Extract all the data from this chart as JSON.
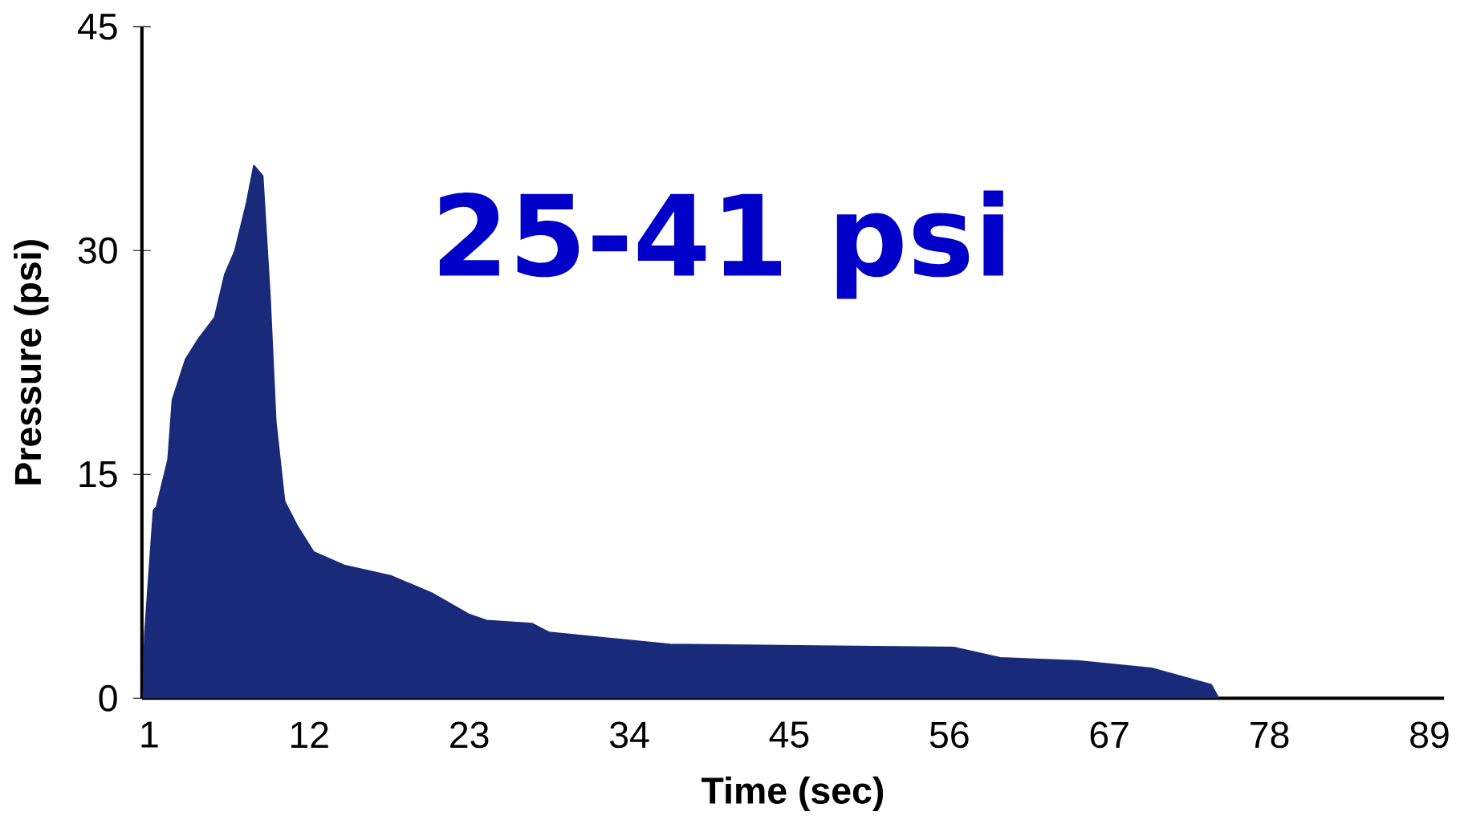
{
  "chart_data": {
    "type": "area",
    "xlabel": "Time (sec)",
    "ylabel": "Pressure (psi)",
    "annotations": [
      "25-41 psi"
    ],
    "xlim": [
      0.5,
      90
    ],
    "ylim": [
      0,
      45
    ],
    "xticks": [
      1,
      12,
      23,
      34,
      45,
      56,
      67,
      78,
      89
    ],
    "yticks": [
      0,
      15,
      30,
      45
    ],
    "grid": false,
    "series": [
      {
        "color": "#1a2a7a",
        "x": [
          0.6,
          0.7,
          1.3,
          1.5,
          2.3,
          2.6,
          3.5,
          4.4,
          5.5,
          6.2,
          6.9,
          7.7,
          8.2,
          8.8,
          9.3,
          9.7,
          10.3,
          11.2,
          12.3,
          14.4,
          17.6,
          20.5,
          23,
          24.2,
          27.3,
          28.5,
          36.8,
          56.3,
          59.5,
          64.8,
          69.9,
          74,
          74.5
        ],
        "values": [
          0,
          4.3,
          12.6,
          12.8,
          16,
          20,
          22.7,
          24.1,
          25.5,
          28.4,
          30,
          33.2,
          35.7,
          35,
          26.9,
          18.5,
          13.2,
          11.5,
          9.8,
          8.9,
          8.2,
          7.0,
          5.6,
          5.2,
          5.0,
          4.4,
          3.6,
          3.4,
          2.7,
          2.5,
          2.0,
          0.9,
          0
        ]
      }
    ]
  }
}
